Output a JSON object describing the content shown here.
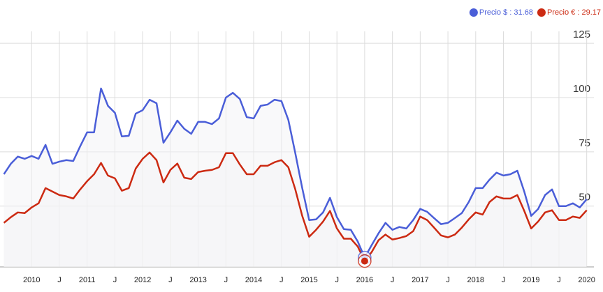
{
  "chart_data": {
    "type": "line",
    "x": [
      2009.5,
      2009.625,
      2009.75,
      2009.875,
      2010,
      2010.125,
      2010.25,
      2010.375,
      2010.5,
      2010.625,
      2010.75,
      2010.875,
      2011,
      2011.125,
      2011.25,
      2011.375,
      2011.5,
      2011.625,
      2011.75,
      2011.875,
      2012,
      2012.125,
      2012.25,
      2012.375,
      2012.5,
      2012.625,
      2012.75,
      2012.875,
      2013,
      2013.125,
      2013.25,
      2013.375,
      2013.5,
      2013.625,
      2013.75,
      2013.875,
      2014,
      2014.125,
      2014.25,
      2014.375,
      2014.5,
      2014.625,
      2014.75,
      2014.875,
      2015,
      2015.125,
      2015.25,
      2015.375,
      2015.5,
      2015.625,
      2015.75,
      2015.875,
      2016,
      2016.125,
      2016.25,
      2016.375,
      2016.5,
      2016.625,
      2016.75,
      2016.875,
      2017,
      2017.125,
      2017.25,
      2017.375,
      2017.5,
      2017.625,
      2017.75,
      2017.875,
      2018,
      2018.125,
      2018.25,
      2018.375,
      2018.5,
      2018.625,
      2018.75,
      2018.875,
      2019,
      2019.125,
      2019.25,
      2019.375,
      2019.5,
      2019.625,
      2019.75,
      2019.875,
      2020
    ],
    "series": [
      {
        "name": "Precio $ : 31.68",
        "color": "#4a5ed8",
        "values": [
          64.7,
          69.5,
          72.8,
          71.8,
          73.1,
          71.8,
          78.2,
          69.5,
          70.5,
          71.2,
          70.8,
          77.6,
          84.0,
          84.0,
          104.2,
          96.2,
          93.0,
          82.1,
          82.4,
          92.6,
          94.2,
          99.0,
          97.4,
          79.2,
          84.0,
          89.4,
          85.6,
          83.3,
          88.8,
          88.8,
          87.8,
          90.4,
          100.0,
          102.2,
          99.4,
          91.0,
          90.4,
          96.2,
          96.8,
          99.0,
          98.4,
          89.7,
          74.4,
          58.3,
          43.6,
          43.9,
          47.1,
          53.8,
          44.9,
          39.4,
          39.1,
          33.7,
          26.3,
          32.0,
          37.5,
          42.3,
          39.1,
          40.4,
          39.7,
          43.6,
          48.7,
          47.4,
          44.5,
          41.7,
          42.3,
          44.5,
          46.8,
          51.9,
          58.3,
          58.3,
          62.2,
          65.4,
          64.1,
          64.7,
          66.3,
          56.7,
          45.5,
          48.7,
          55.1,
          57.7,
          50.0,
          50.0,
          51.3,
          49.4,
          53.2
        ]
      },
      {
        "name": "Precio € : 29.17",
        "color": "#cc2a12",
        "values": [
          42.3,
          44.9,
          47.1,
          46.8,
          49.4,
          51.3,
          58.3,
          56.7,
          55.1,
          54.5,
          53.5,
          57.7,
          61.5,
          64.7,
          69.9,
          64.1,
          62.8,
          57.1,
          58.3,
          67.3,
          71.8,
          74.7,
          71.2,
          60.9,
          66.7,
          69.6,
          63.1,
          62.5,
          65.7,
          66.3,
          66.7,
          67.9,
          74.4,
          74.4,
          69.2,
          64.7,
          64.7,
          68.6,
          68.6,
          70.2,
          71.2,
          67.9,
          57.7,
          45.5,
          35.9,
          39.1,
          42.9,
          47.8,
          39.7,
          35.0,
          35.0,
          31.4,
          24.7,
          28.8,
          34.3,
          36.9,
          34.6,
          35.3,
          36.2,
          38.5,
          45.2,
          43.6,
          40.1,
          36.5,
          35.6,
          36.9,
          40.1,
          43.9,
          47.1,
          46.1,
          51.9,
          54.5,
          53.5,
          53.5,
          55.1,
          47.8,
          39.7,
          42.9,
          47.1,
          48.1,
          43.6,
          43.6,
          45.2,
          44.6,
          48.1
        ]
      }
    ],
    "xlim": [
      2009.43,
      2020.13
    ],
    "xticks": [
      {
        "value": 2010,
        "label": "2010"
      },
      {
        "value": 2010.5,
        "label": "J"
      },
      {
        "value": 2011,
        "label": "2011"
      },
      {
        "value": 2011.5,
        "label": "J"
      },
      {
        "value": 2012,
        "label": "2012"
      },
      {
        "value": 2012.5,
        "label": "J"
      },
      {
        "value": 2013,
        "label": "2013"
      },
      {
        "value": 2013.5,
        "label": "J"
      },
      {
        "value": 2014,
        "label": "2014"
      },
      {
        "value": 2014.5,
        "label": "J"
      },
      {
        "value": 2015,
        "label": "2015"
      },
      {
        "value": 2015.5,
        "label": "J"
      },
      {
        "value": 2016,
        "label": "2016"
      },
      {
        "value": 2016.5,
        "label": "J"
      },
      {
        "value": 2017,
        "label": "2017"
      },
      {
        "value": 2017.5,
        "label": "J"
      },
      {
        "value": 2018,
        "label": "2018"
      },
      {
        "value": 2018.5,
        "label": "J"
      },
      {
        "value": 2019,
        "label": "2019"
      },
      {
        "value": 2019.5,
        "label": "J"
      },
      {
        "value": 2020,
        "label": "2020"
      }
    ],
    "ylim": [
      22,
      130.5
    ],
    "yticks": [
      50,
      75,
      100,
      125
    ],
    "grid": true,
    "legend": "top-right"
  }
}
